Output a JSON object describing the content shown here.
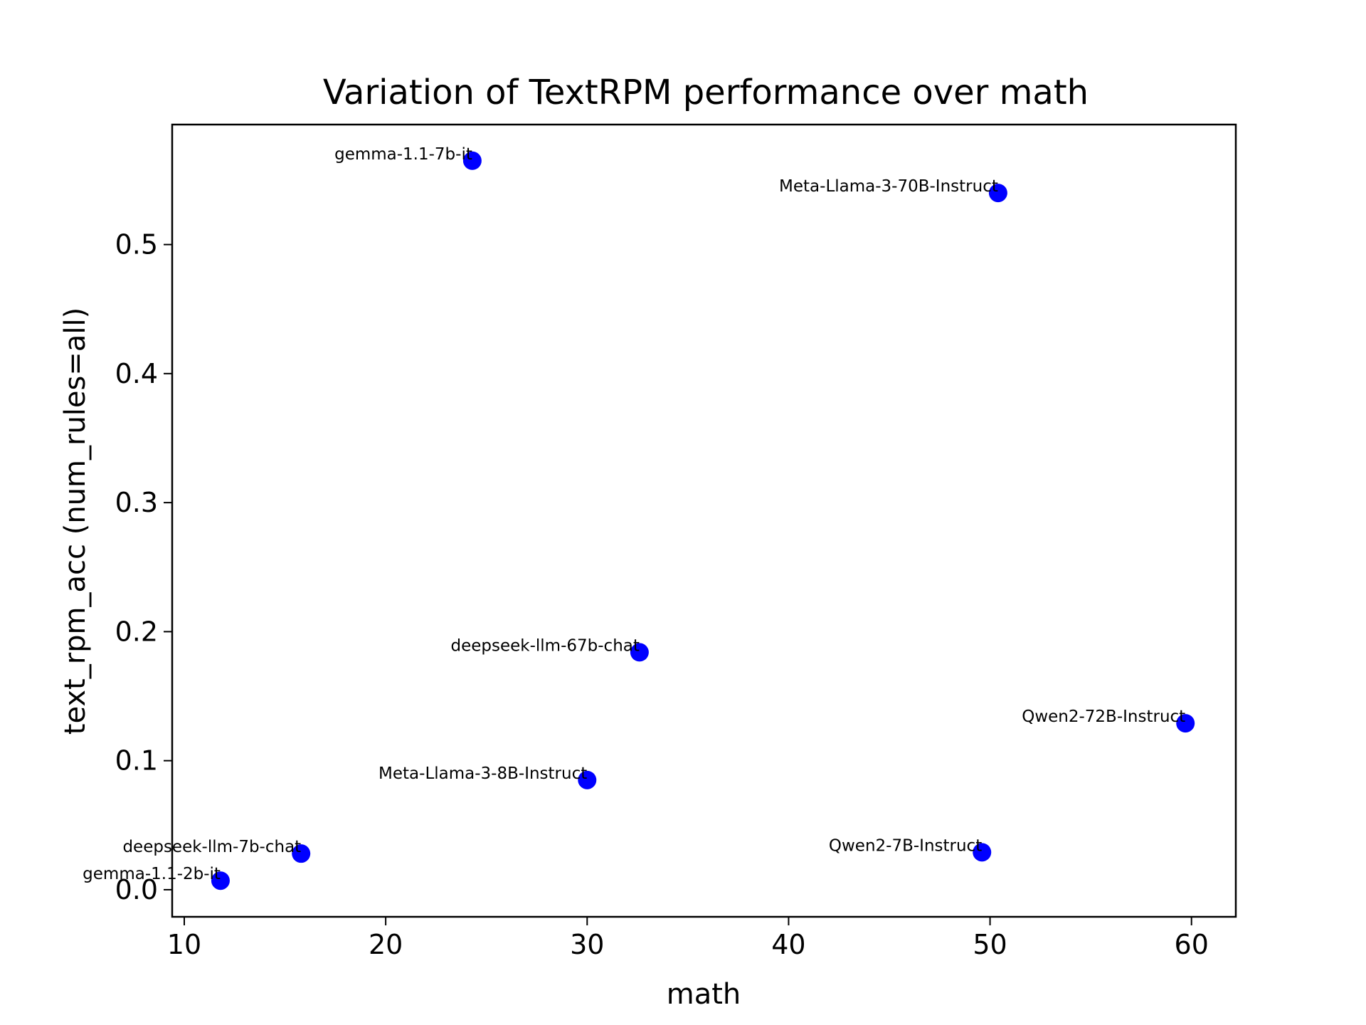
{
  "chart_data": {
    "type": "scatter",
    "title": "Variation of TextRPM performance over math",
    "xlabel": "math",
    "ylabel": "text_rpm_acc (num_rules=all)",
    "xlim": [
      9.4,
      62.2
    ],
    "ylim": [
      -0.021,
      0.593
    ],
    "xticks": [
      10,
      20,
      30,
      40,
      50,
      60
    ],
    "yticks": [
      0.0,
      0.1,
      0.2,
      0.3,
      0.4,
      0.5
    ],
    "xtick_labels": [
      "10",
      "20",
      "30",
      "40",
      "50",
      "60"
    ],
    "ytick_labels": [
      "0.0",
      "0.1",
      "0.2",
      "0.3",
      "0.4",
      "0.5"
    ],
    "grid": false,
    "marker_color": "#0000ff",
    "points": [
      {
        "label": "gemma-1.1-7b-it",
        "x": 24.3,
        "y": 0.565
      },
      {
        "label": "Meta-Llama-3-70B-Instruct",
        "x": 50.4,
        "y": 0.54
      },
      {
        "label": "deepseek-llm-67b-chat",
        "x": 32.6,
        "y": 0.184
      },
      {
        "label": "Qwen2-72B-Instruct",
        "x": 59.7,
        "y": 0.129
      },
      {
        "label": "Meta-Llama-3-8B-Instruct",
        "x": 30.0,
        "y": 0.085
      },
      {
        "label": "deepseek-llm-7b-chat",
        "x": 15.8,
        "y": 0.028
      },
      {
        "label": "Qwen2-7B-Instruct",
        "x": 49.6,
        "y": 0.029
      },
      {
        "label": "gemma-1.1-2b-it",
        "x": 11.8,
        "y": 0.007
      }
    ]
  }
}
